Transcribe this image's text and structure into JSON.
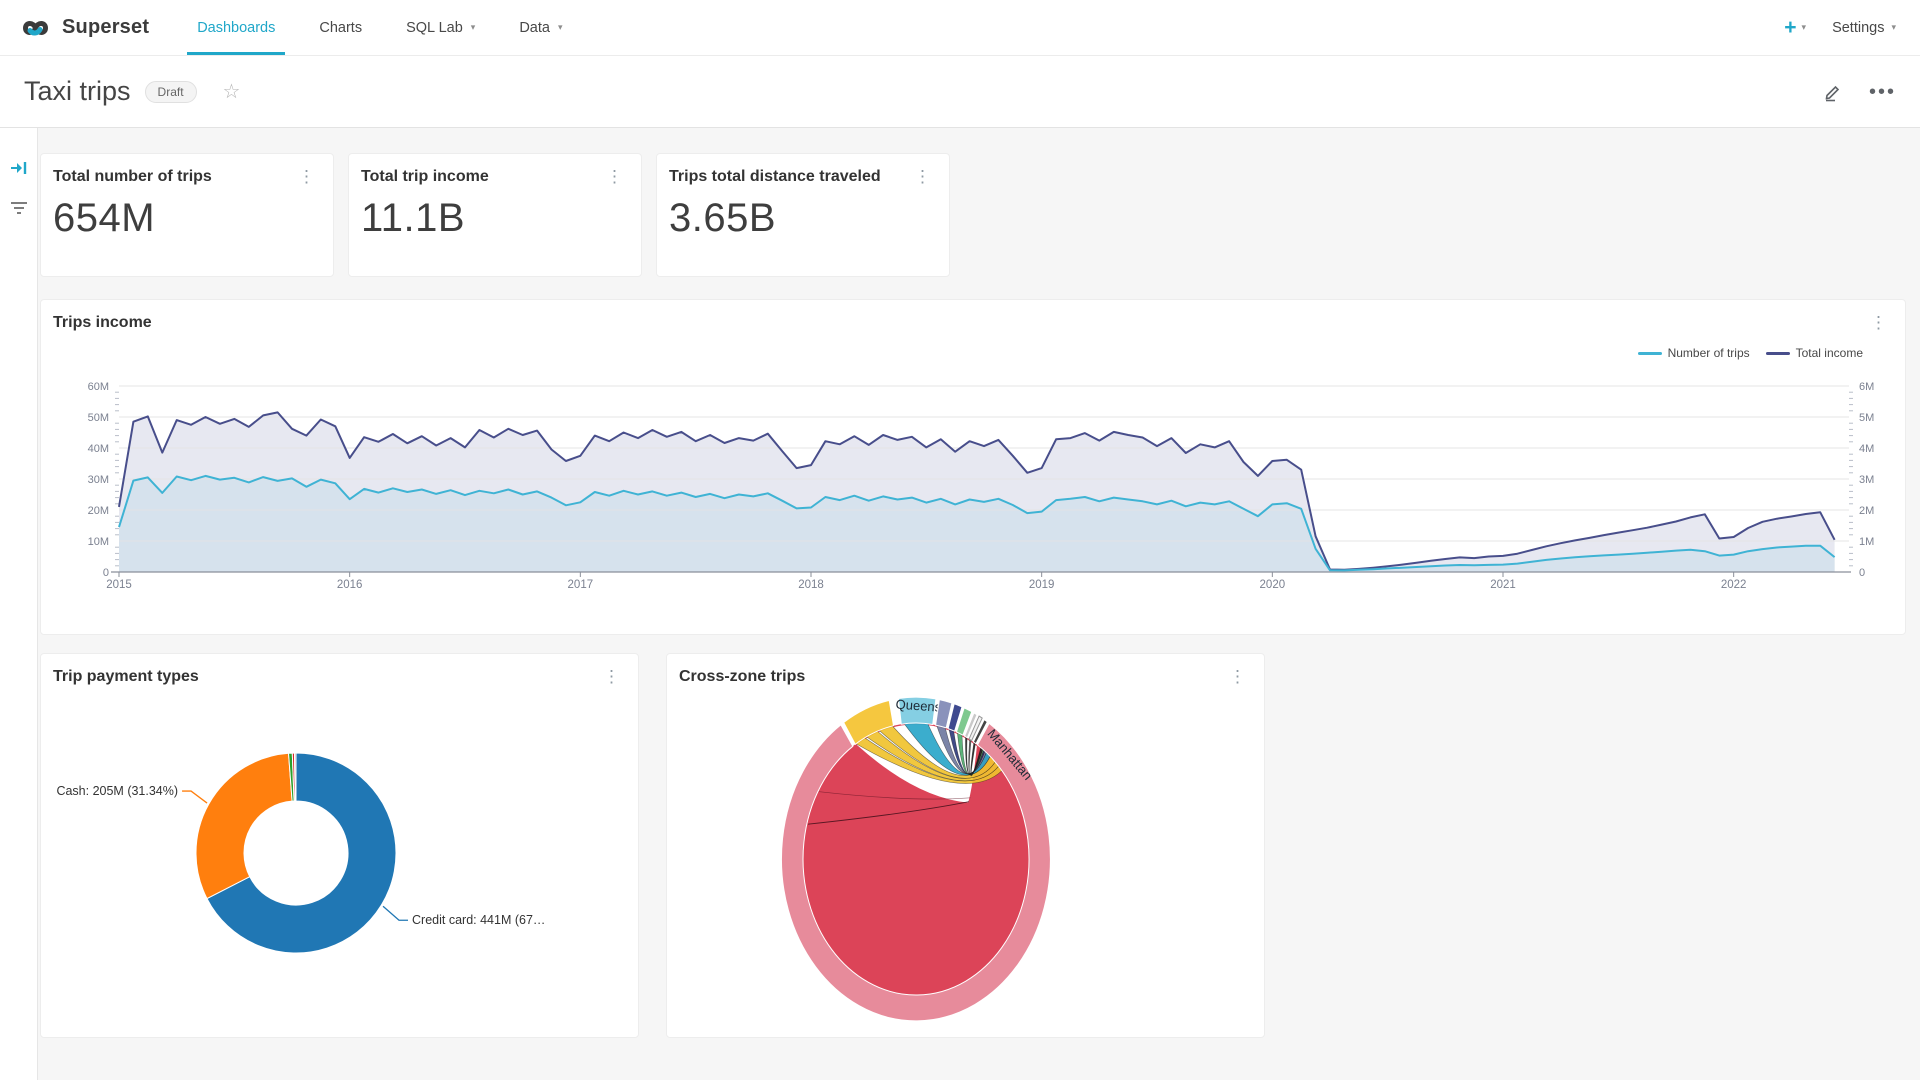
{
  "navbar": {
    "brand": "Superset",
    "items": [
      {
        "label": "Dashboards",
        "active": true,
        "caret": false
      },
      {
        "label": "Charts",
        "active": false,
        "caret": false
      },
      {
        "label": "SQL Lab",
        "active": false,
        "caret": true
      },
      {
        "label": "Data",
        "active": false,
        "caret": true
      }
    ],
    "plus_label": "+",
    "settings_label": "Settings",
    "accent_color": "#20a7c9"
  },
  "header": {
    "title": "Taxi trips",
    "badge": "Draft"
  },
  "kpis": [
    {
      "title": "Total number of trips",
      "value": "654M"
    },
    {
      "title": "Total trip income",
      "value": "11.1B"
    },
    {
      "title": "Trips total distance traveled",
      "value": "3.65B"
    }
  ],
  "chart_data": [
    {
      "type": "line",
      "title": "Trips income",
      "x_start": 2015,
      "x_step_years": 0.0625,
      "x_axis_labels": [
        "2015",
        "2016",
        "2017",
        "2018",
        "2019",
        "2020",
        "2021",
        "2022"
      ],
      "x_range_years": [
        2015,
        2022.5
      ],
      "y_left": {
        "ticks": [
          "0",
          "10M",
          "20M",
          "30M",
          "40M",
          "50M",
          "60M"
        ],
        "min": 0,
        "max": 60
      },
      "y_right": {
        "ticks": [
          "0",
          "1M",
          "2M",
          "3M",
          "4M",
          "5M",
          "6M"
        ],
        "min": 0,
        "max": 6
      },
      "grid": true,
      "legend_position": "top-right",
      "note": "values are in left-axis millions; right axis = left/10",
      "series": [
        {
          "name": "Number of trips",
          "axis": "left",
          "color": "#3fb3d4",
          "fill": "#d5e2ec",
          "values": [
            14.5,
            29.5,
            30.5,
            25.5,
            30.8,
            29.6,
            31.0,
            29.8,
            30.4,
            28.9,
            30.6,
            29.4,
            30.2,
            27.5,
            29.8,
            28.6,
            23.5,
            26.8,
            25.6,
            27.0,
            25.8,
            26.6,
            25.2,
            26.4,
            24.8,
            26.2,
            25.4,
            26.6,
            25.0,
            26.0,
            24.0,
            21.5,
            22.5,
            25.8,
            24.6,
            26.2,
            25.0,
            26.0,
            24.6,
            25.6,
            24.2,
            25.2,
            23.8,
            25.0,
            24.4,
            25.4,
            23.0,
            20.5,
            20.8,
            24.2,
            23.2,
            24.6,
            23.0,
            24.4,
            23.4,
            24.0,
            22.4,
            23.6,
            21.8,
            23.4,
            22.6,
            23.6,
            21.6,
            19.0,
            19.5,
            23.2,
            23.6,
            24.2,
            22.8,
            24.0,
            23.4,
            22.8,
            21.8,
            23.0,
            21.2,
            22.4,
            21.8,
            22.8,
            20.4,
            18.0,
            21.8,
            22.2,
            20.4,
            7.5,
            0.55,
            0.5,
            0.7,
            0.9,
            1.15,
            1.4,
            1.6,
            1.85,
            2.1,
            2.25,
            2.15,
            2.3,
            2.4,
            2.7,
            3.3,
            3.9,
            4.35,
            4.75,
            5.05,
            5.35,
            5.6,
            5.9,
            6.2,
            6.55,
            6.9,
            7.15,
            6.7,
            5.3,
            5.6,
            6.7,
            7.4,
            7.9,
            8.2,
            8.45,
            8.5,
            4.8
          ]
        },
        {
          "name": "Total income",
          "axis": "right",
          "color": "#484e8b",
          "fill": "#e4e6f0",
          "values": [
            21.0,
            48.5,
            50.2,
            38.5,
            49.0,
            47.5,
            50.0,
            47.8,
            49.4,
            46.8,
            50.5,
            51.5,
            46.2,
            44.0,
            49.2,
            47.0,
            36.8,
            43.5,
            42.0,
            44.5,
            41.5,
            43.8,
            40.8,
            43.2,
            40.2,
            45.8,
            43.4,
            46.2,
            44.2,
            45.6,
            39.5,
            35.8,
            37.5,
            44.0,
            42.2,
            45.0,
            43.2,
            45.8,
            43.6,
            45.2,
            42.2,
            44.2,
            41.6,
            43.2,
            42.4,
            44.6,
            39.0,
            33.5,
            34.5,
            42.2,
            41.2,
            43.8,
            41.0,
            44.2,
            42.6,
            43.6,
            40.2,
            42.8,
            38.8,
            42.2,
            40.6,
            42.6,
            37.5,
            32.0,
            33.5,
            42.8,
            43.2,
            44.8,
            42.4,
            45.2,
            44.2,
            43.4,
            40.6,
            43.2,
            38.4,
            41.2,
            40.2,
            42.2,
            35.5,
            31.0,
            35.8,
            36.2,
            33.0,
            11.5,
            0.8,
            0.7,
            1.0,
            1.4,
            1.85,
            2.4,
            3.0,
            3.6,
            4.2,
            4.7,
            4.5,
            5.0,
            5.2,
            5.9,
            7.1,
            8.3,
            9.3,
            10.2,
            11.0,
            11.9,
            12.7,
            13.5,
            14.3,
            15.3,
            16.3,
            17.6,
            18.6,
            10.8,
            11.3,
            14.2,
            16.2,
            17.2,
            17.9,
            18.7,
            19.3,
            10.4
          ]
        }
      ]
    },
    {
      "type": "pie",
      "title": "Trip payment types",
      "donut": true,
      "slices": [
        {
          "label": "Credit card",
          "display": "Credit card: 441M (67…",
          "value": 441,
          "pct": 67.47,
          "color": "#2077b4"
        },
        {
          "label": "Cash",
          "display": "Cash: 205M (31.34%)",
          "value": 205,
          "pct": 31.34,
          "color": "#ff7f0e"
        },
        {
          "label": "",
          "display": "",
          "value": null,
          "pct": 0.6,
          "color": "#2ca02c"
        },
        {
          "label": "",
          "display": "",
          "value": null,
          "pct": 0.35,
          "color": "#d62728"
        },
        {
          "label": "",
          "display": "",
          "value": null,
          "pct": 0.24,
          "color": "#bbbbbb"
        }
      ]
    },
    {
      "type": "chord",
      "title": "Cross-zone trips",
      "visible_zone_labels": [
        "Queens",
        "Manhattan"
      ],
      "dominant_fill_color": "#dc4458",
      "arcs": [
        {
          "zone": "Manhattan",
          "start": 33,
          "end": 326,
          "color": "#e78b9b",
          "label": "Manhattan",
          "label_angle": 47
        },
        {
          "zone": "",
          "start": 327.5,
          "end": 348.5,
          "color": "#f5c73f",
          "label": ""
        },
        {
          "zone": "Queens",
          "start": 352.5,
          "end": 368.5,
          "color": "#85cfe3",
          "label": "Queens",
          "label_angle": 1
        },
        {
          "zone": "",
          "start": 370,
          "end": 375.5,
          "color": "#8a92bb",
          "label": ""
        },
        {
          "zone": "",
          "start": 376.5,
          "end": 380,
          "color": "#3f4a8f",
          "label": ""
        },
        {
          "zone": "",
          "start": 381,
          "end": 384.5,
          "color": "#7ec98f",
          "label": ""
        },
        {
          "zone": "",
          "start": 385.5,
          "end": 387,
          "color": "#c9c9c9",
          "label": ""
        },
        {
          "zone": "",
          "start": 388,
          "end": 389.5,
          "color": "#f2f2f2",
          "label": "",
          "stroke": "#999999"
        },
        {
          "zone": "",
          "start": 390.5,
          "end": 392,
          "color": "#444444",
          "label": ""
        }
      ],
      "ribbons": [
        {
          "from": [
            328,
            333
          ],
          "to": [
            47,
            49.5
          ],
          "color": "#f0c22e"
        },
        {
          "from": [
            334,
            340
          ],
          "to": [
            44.5,
            47
          ],
          "color": "#f0c22e"
        },
        {
          "from": [
            341,
            348
          ],
          "to": [
            41,
            44.5
          ],
          "color": "#f0c22e"
        },
        {
          "from": [
            354,
            366
          ],
          "to": [
            38.5,
            41
          ],
          "color": "#2aa6c9"
        },
        {
          "from": [
            370.5,
            375
          ],
          "to": [
            37.5,
            38.5
          ],
          "color": "#70799f"
        },
        {
          "from": [
            377,
            379.5
          ],
          "to": [
            36.8,
            37.5
          ],
          "color": "#303c7d"
        },
        {
          "from": [
            381.5,
            384
          ],
          "to": [
            36.2,
            36.8
          ],
          "color": "#4fae6f"
        },
        {
          "from": [
            386,
            386.9
          ],
          "to": [
            35.8,
            36.2
          ],
          "color": "#2a2a2a"
        },
        {
          "from": [
            388.4,
            389.2
          ],
          "to": [
            35.4,
            35.8
          ],
          "color": "#555555"
        },
        {
          "from": [
            390.8,
            391.8
          ],
          "to": [
            35.0,
            35.4
          ],
          "color": "#222222"
        }
      ]
    }
  ]
}
